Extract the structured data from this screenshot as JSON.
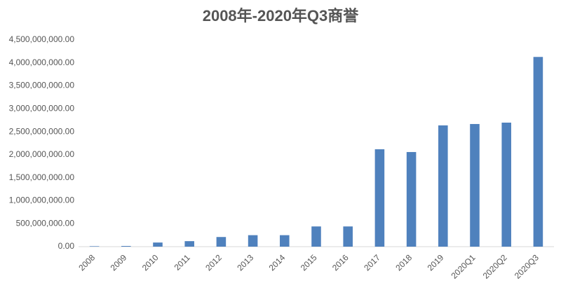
{
  "chart_data": {
    "type": "bar",
    "title": "2008年-2020年Q3商誉",
    "categories": [
      "2008",
      "2009",
      "2010",
      "2011",
      "2012",
      "2013",
      "2014",
      "2015",
      "2016",
      "2017",
      "2018",
      "2019",
      "2020Q1",
      "2020Q2",
      "2020Q3"
    ],
    "values": [
      10000000,
      15000000,
      90000000,
      120000000,
      210000000,
      250000000,
      250000000,
      440000000,
      440000000,
      2120000000,
      2060000000,
      2640000000,
      2670000000,
      2700000000,
      4130000000
    ],
    "color": "#4f81bd",
    "ylim": [
      0,
      4500000000
    ],
    "yticks": [
      {
        "value": 0,
        "label": "0.00"
      },
      {
        "value": 500000000,
        "label": "500,000,000.00"
      },
      {
        "value": 1000000000,
        "label": "1,000,000,000.00"
      },
      {
        "value": 1500000000,
        "label": "1,500,000,000.00"
      },
      {
        "value": 2000000000,
        "label": "2,000,000,000.00"
      },
      {
        "value": 2500000000,
        "label": "2,500,000,000.00"
      },
      {
        "value": 3000000000,
        "label": "3,000,000,000.00"
      },
      {
        "value": 3500000000,
        "label": "3,500,000,000.00"
      },
      {
        "value": 4000000000,
        "label": "4,000,000,000.00"
      },
      {
        "value": 4500000000,
        "label": "4,500,000,000.00"
      }
    ],
    "grid": false
  }
}
